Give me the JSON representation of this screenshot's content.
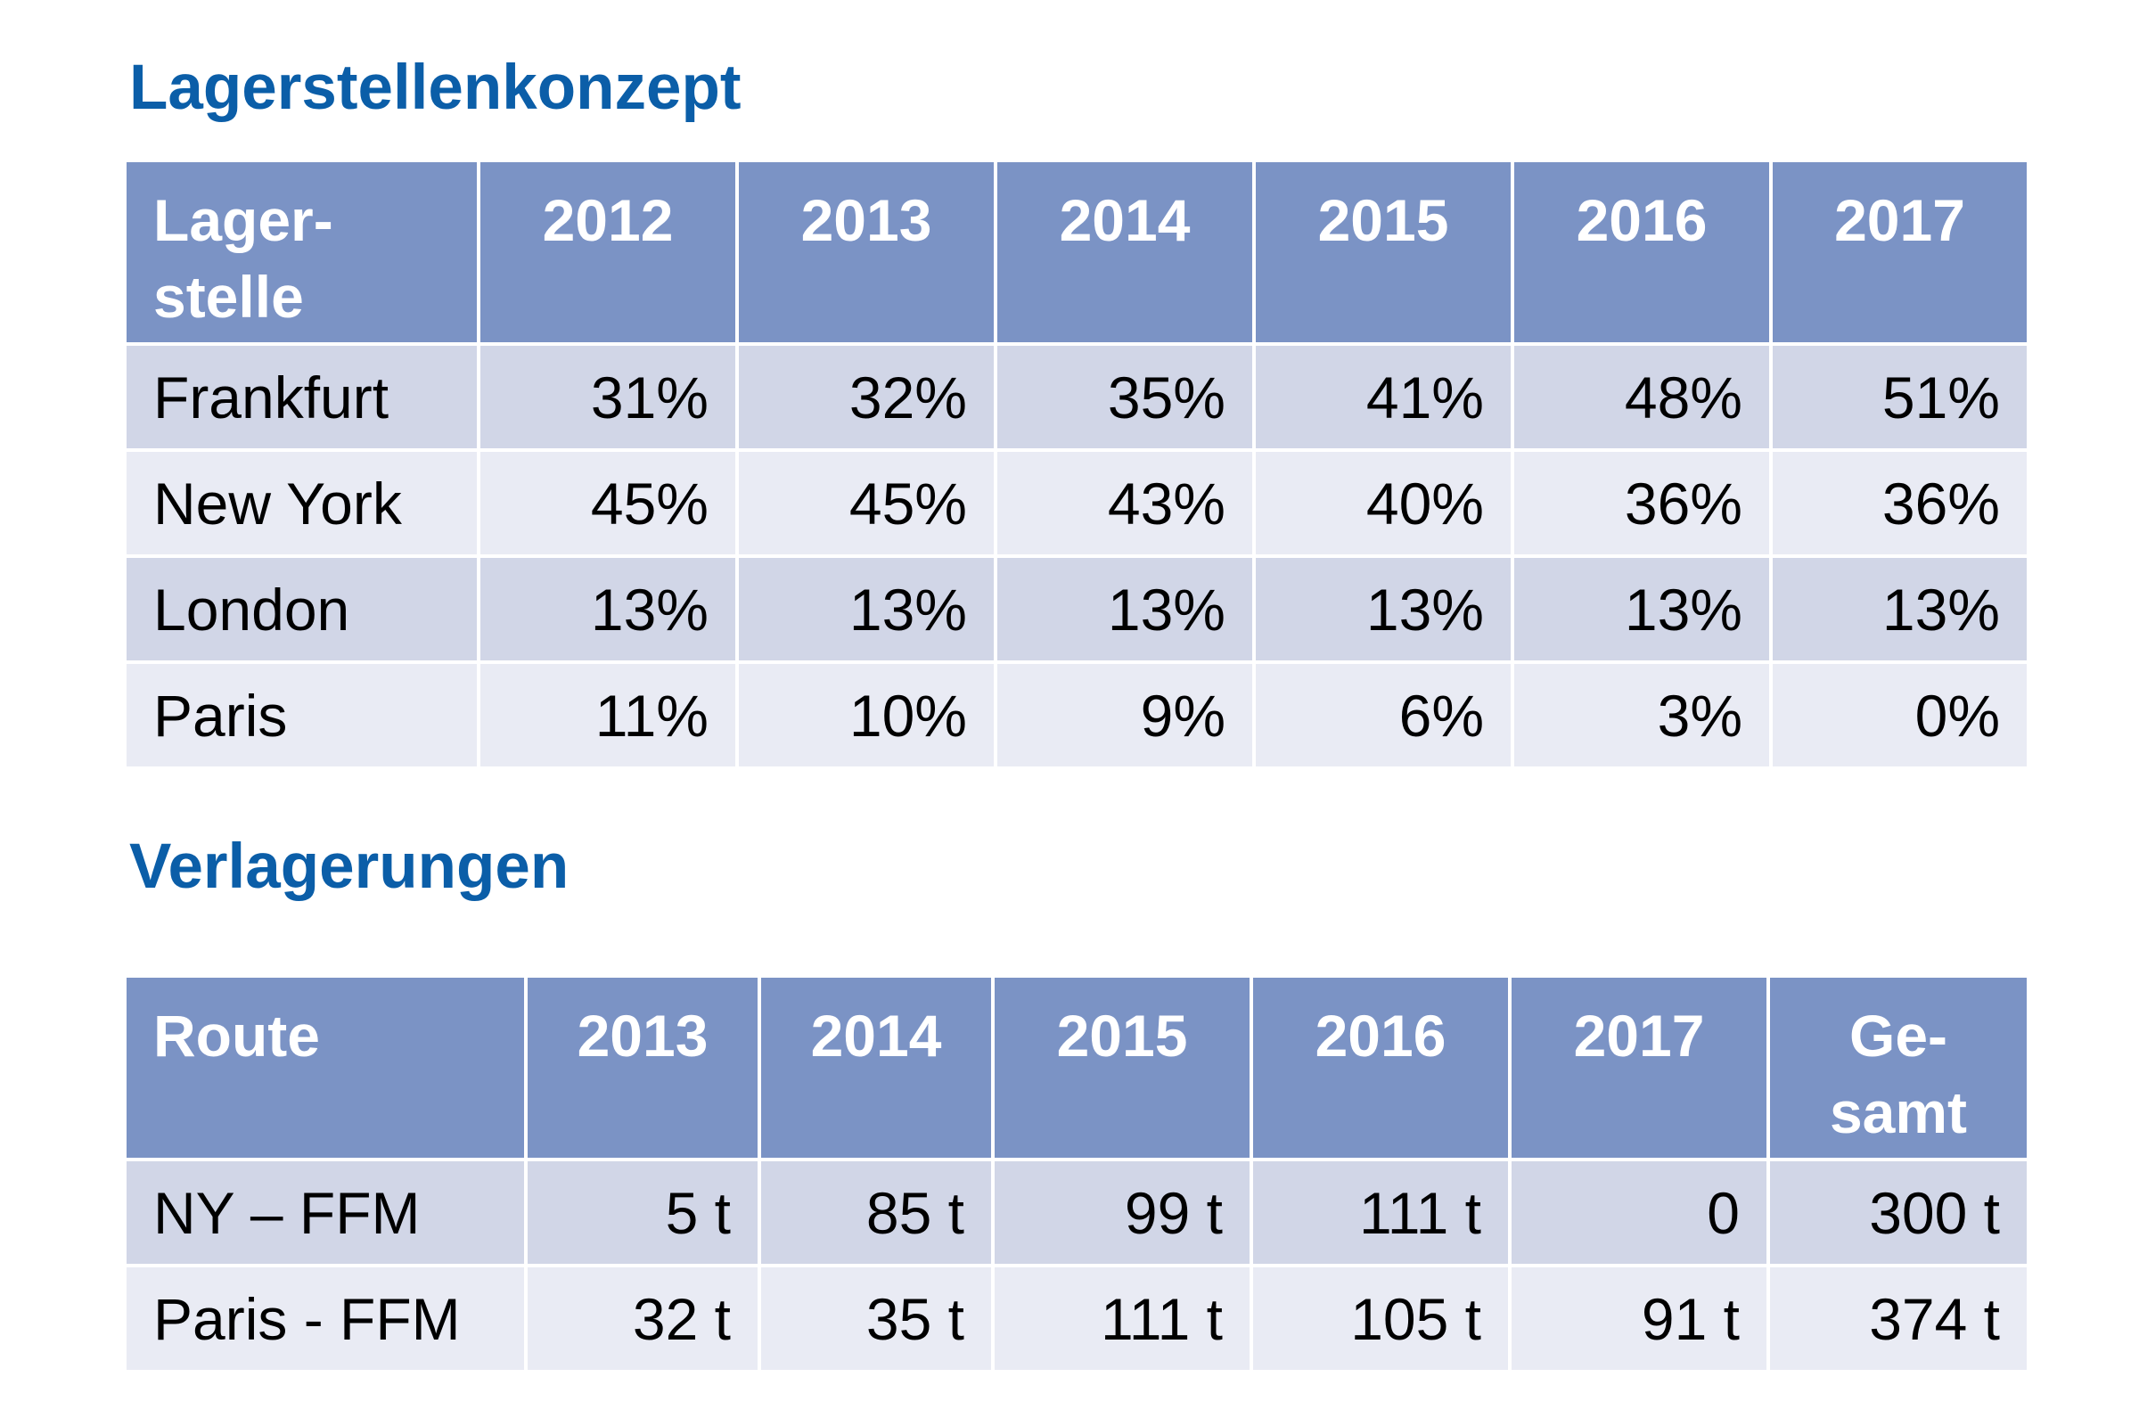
{
  "lagerstellen": {
    "title": "Lagerstellenkonzept",
    "header": {
      "first_line1": "Lager-",
      "first_line2": "stelle",
      "years": [
        "2012",
        "2013",
        "2014",
        "2015",
        "2016",
        "2017"
      ]
    },
    "rows": [
      {
        "label": "Frankfurt",
        "values": [
          "31%",
          "32%",
          "35%",
          "41%",
          "48%",
          "51%"
        ]
      },
      {
        "label": "New York",
        "values": [
          "45%",
          "45%",
          "43%",
          "40%",
          "36%",
          "36%"
        ]
      },
      {
        "label": "London",
        "values": [
          "13%",
          "13%",
          "13%",
          "13%",
          "13%",
          "13%"
        ]
      },
      {
        "label": "Paris",
        "values": [
          "11%",
          "10%",
          "9%",
          "6%",
          "3%",
          "0%"
        ]
      }
    ]
  },
  "verlagerungen": {
    "title": "Verlagerungen",
    "header": {
      "first": "Route",
      "years": [
        "2013",
        "2014",
        "2015",
        "2016",
        "2017"
      ],
      "total_line1": "Ge-",
      "total_line2": "samt"
    },
    "rows": [
      {
        "label": "NY – FFM",
        "values": [
          "5 t",
          "85 t",
          "99 t",
          "111 t",
          "0",
          "300 t"
        ]
      },
      {
        "label": "Paris - FFM",
        "values": [
          "32 t",
          "35 t",
          "111 t",
          "105 t",
          "91 t",
          "374 t"
        ]
      }
    ]
  },
  "colors": {
    "heading": "#0b5ea8",
    "header_bg": "#7b93c5",
    "row_odd_bg": "#d1d6e7",
    "row_even_bg": "#e9ebf4"
  }
}
